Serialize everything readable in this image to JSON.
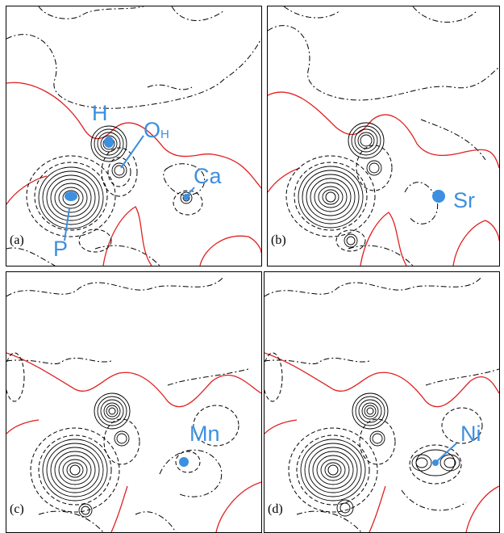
{
  "colors": {
    "atom_label": "#3d8fe0",
    "zero_contour": "#e02020",
    "contour": "#000000"
  },
  "panels": [
    {
      "id": "a",
      "label": "(a)",
      "atoms": {
        "h": "H",
        "o": "O",
        "o_sub": "H",
        "m": "Ca",
        "p": "P"
      }
    },
    {
      "id": "b",
      "label": "(b)",
      "atoms": {
        "m": "Sr"
      }
    },
    {
      "id": "c",
      "label": "(c)",
      "atoms": {
        "m": "Mn"
      }
    },
    {
      "id": "d",
      "label": "(d)",
      "atoms": {
        "m": "Ni"
      }
    }
  ]
}
